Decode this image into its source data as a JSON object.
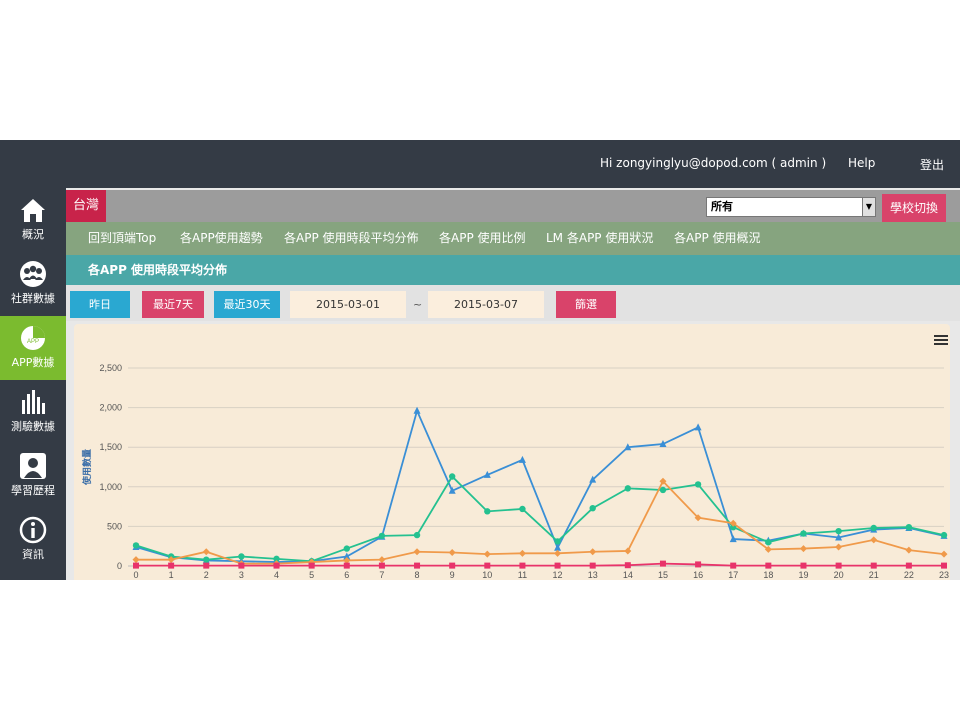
{
  "topbar": {
    "greeting": "Hi zongyinglyu@dopod.com ( admin )",
    "help": "Help",
    "logout": "登出"
  },
  "sidebar": {
    "items": [
      {
        "label": "概況",
        "icon": "home-icon"
      },
      {
        "label": "社群數據",
        "icon": "group-icon"
      },
      {
        "label": "APP數據",
        "icon": "app-pie-icon",
        "active": true,
        "badge": "APP"
      },
      {
        "label": "測驗數據",
        "icon": "bar-chart-icon"
      },
      {
        "label": "學習歷程",
        "icon": "person-icon"
      },
      {
        "label": "資訊",
        "icon": "info-icon"
      }
    ],
    "active_color": "#7bbb2f"
  },
  "region": {
    "name": "台灣",
    "select_value": "所有",
    "switch_label": "學校切換"
  },
  "tabs": [
    "回到頂端Top",
    "各APP使用趨勢",
    "各APP 使用時段平均分佈",
    "各APP 使用比例",
    "LM 各APP 使用狀況",
    "各APP 使用概況"
  ],
  "section_title": "各APP 使用時段平均分佈",
  "filters": {
    "yesterday": "昨日",
    "last7": "最近7天",
    "last30": "最近30天",
    "start_date": "2015-03-01",
    "separator": "~",
    "end_date": "2015-03-07",
    "submit": "篩選"
  },
  "chart_data": {
    "type": "line",
    "x": [
      0,
      1,
      2,
      3,
      4,
      5,
      6,
      7,
      8,
      9,
      10,
      11,
      12,
      13,
      14,
      15,
      16,
      17,
      18,
      19,
      20,
      21,
      22,
      23
    ],
    "ylabel": "使用數量",
    "ylim": [
      0,
      2500
    ],
    "yticks": [
      0,
      500,
      1000,
      1500,
      2000,
      2500
    ],
    "ytick_labels": [
      "0",
      "500",
      "1,000",
      "1,500",
      "2,000",
      "2,500"
    ],
    "grid": true,
    "series": [
      {
        "color": "#3a8fd6",
        "marker": "triangle",
        "values": [
          240,
          110,
          70,
          60,
          50,
          60,
          120,
          370,
          1960,
          950,
          1150,
          1340,
          230,
          1090,
          1500,
          1540,
          1750,
          340,
          320,
          410,
          360,
          460,
          480,
          380
        ]
      },
      {
        "color": "#24c190",
        "marker": "circle",
        "values": [
          260,
          120,
          80,
          120,
          90,
          60,
          220,
          380,
          390,
          1130,
          690,
          720,
          310,
          730,
          980,
          960,
          1030,
          490,
          300,
          410,
          440,
          480,
          490,
          390
        ]
      },
      {
        "color": "#f09a4a",
        "marker": "diamond",
        "values": [
          80,
          80,
          180,
          30,
          30,
          50,
          70,
          80,
          180,
          170,
          150,
          160,
          160,
          180,
          190,
          1070,
          610,
          540,
          210,
          220,
          240,
          330,
          200,
          150
        ]
      },
      {
        "color": "#e8336a",
        "marker": "square",
        "values": [
          5,
          5,
          5,
          5,
          5,
          5,
          5,
          5,
          5,
          5,
          5,
          5,
          5,
          5,
          10,
          30,
          20,
          5,
          5,
          5,
          5,
          5,
          5,
          5
        ]
      }
    ]
  }
}
